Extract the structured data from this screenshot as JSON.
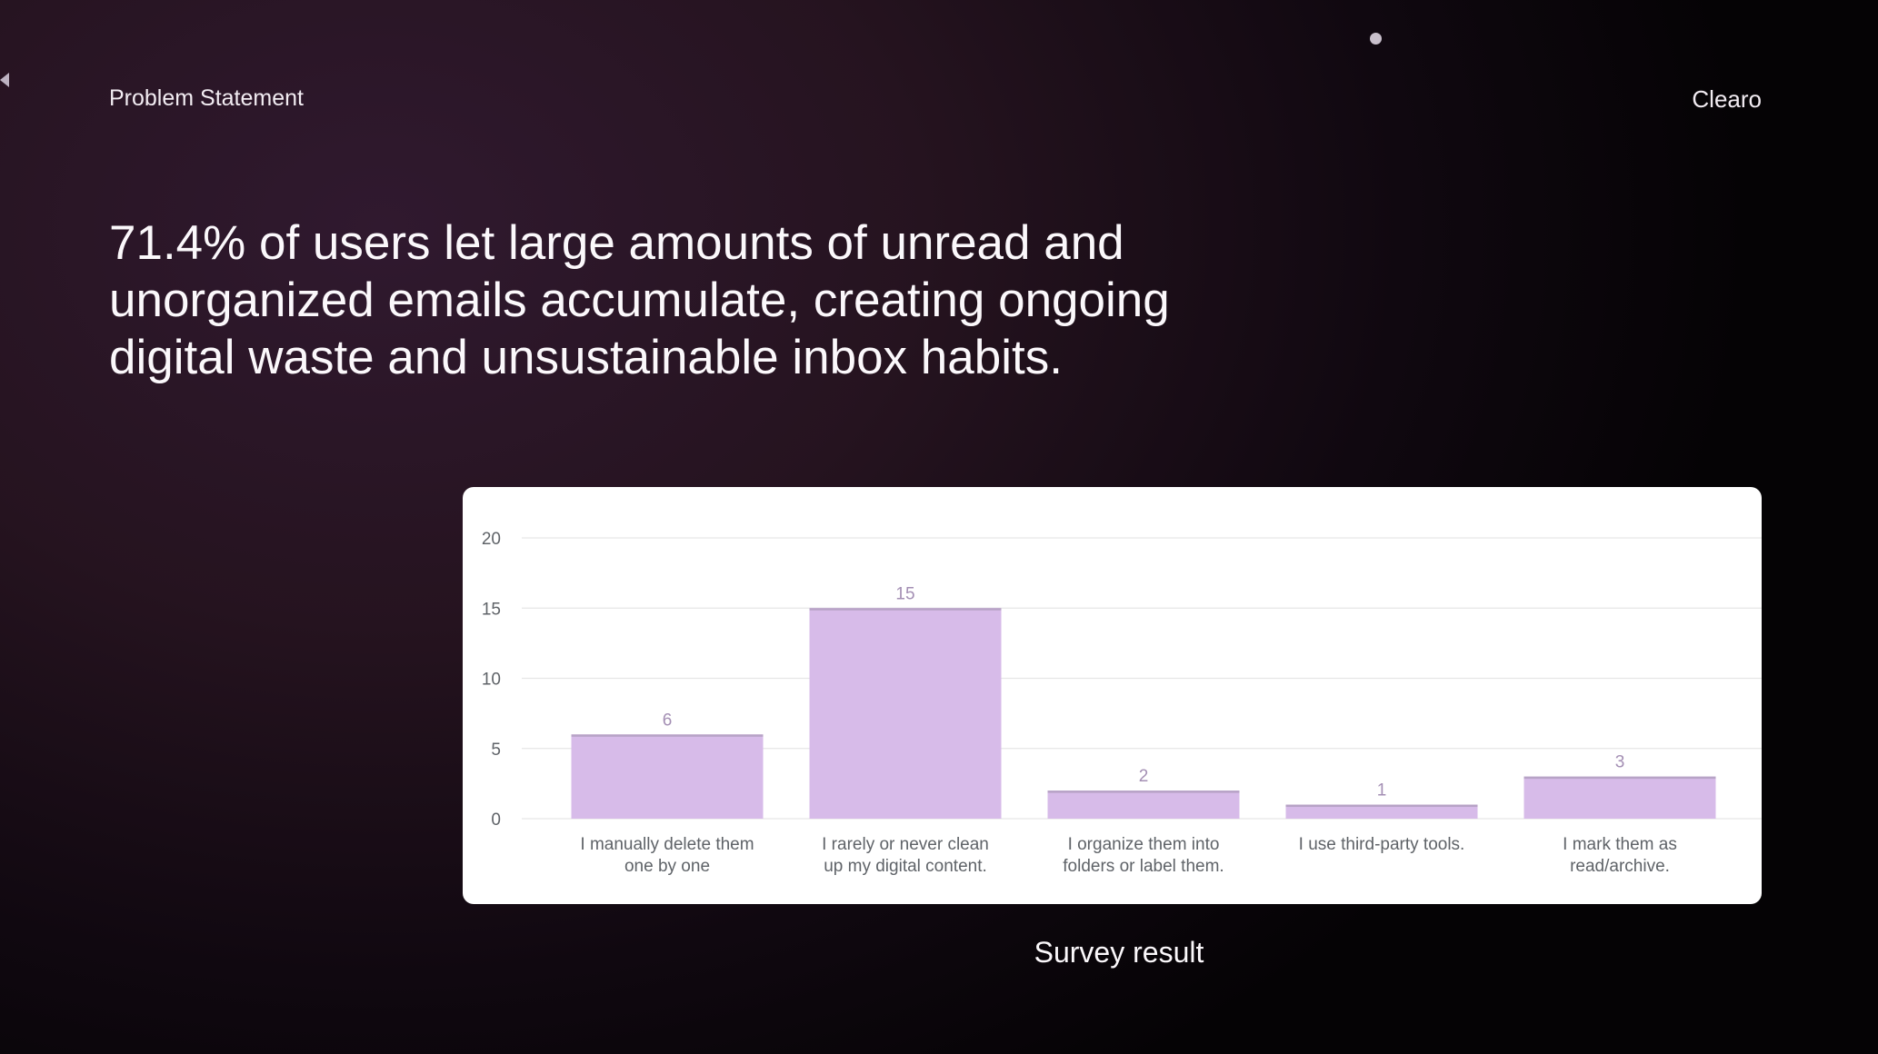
{
  "header": {
    "section": "Problem Statement",
    "brand": "Clearo"
  },
  "headline": "71.4% of users let large amounts of unread and unorganized emails accumulate, creating ongoing digital waste and unsustainable inbox habits.",
  "caption": "Survey result",
  "colors": {
    "bar": "#d7bbe9",
    "bar_top": "#b7a3c6",
    "value_label": "#a48fb4",
    "axis_text": "#5f6368",
    "grid": "#e6e6e6"
  },
  "chart_data": {
    "type": "bar",
    "title": "",
    "xlabel": "",
    "ylabel": "",
    "ylim": [
      0,
      20
    ],
    "yticks": [
      "0",
      "5",
      "10",
      "15",
      "20"
    ],
    "grid": true,
    "categories": [
      [
        "I manually delete them",
        "one by one"
      ],
      [
        "I rarely or never clean",
        "up my digital content."
      ],
      [
        "I organize them into",
        "folders or label them."
      ],
      [
        "I use third-party tools."
      ],
      [
        "I mark them as",
        "read/archive."
      ]
    ],
    "values": [
      6,
      15,
      2,
      1,
      3
    ],
    "value_labels": [
      "6",
      "15",
      "2",
      "1",
      "3"
    ]
  }
}
